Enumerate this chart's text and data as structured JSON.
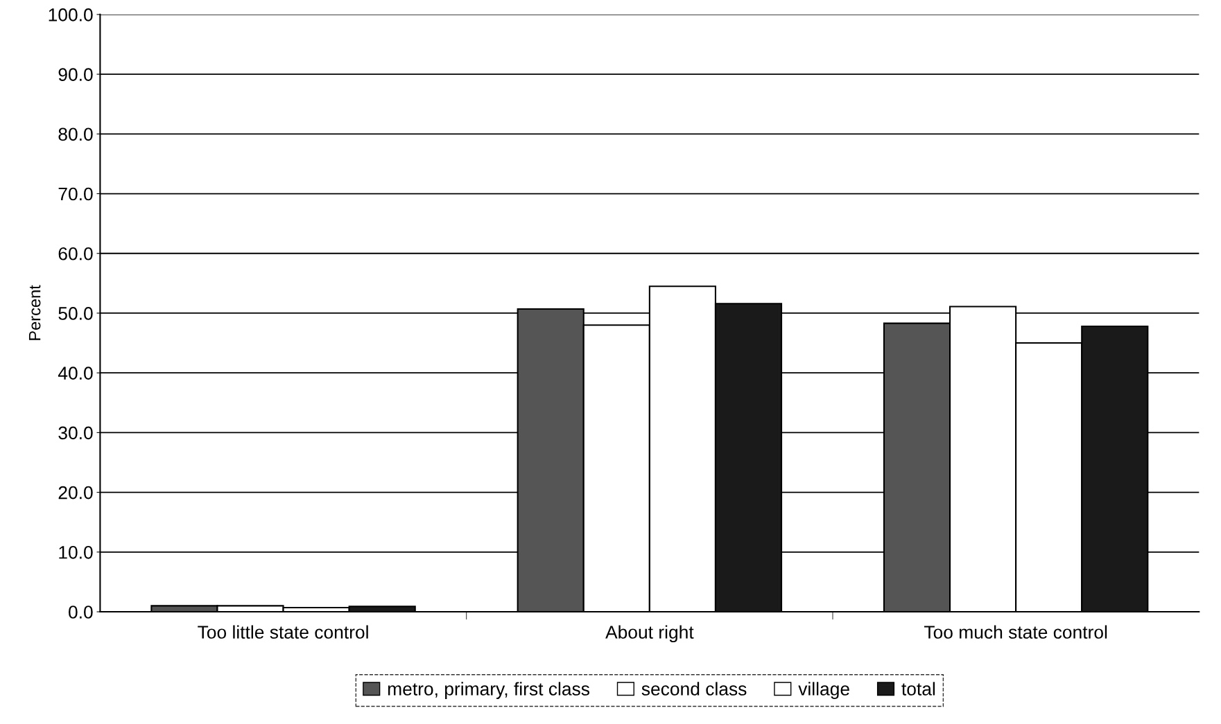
{
  "chart_data": {
    "type": "bar",
    "ylabel": "Percent",
    "categories": [
      "Too little state control",
      "About right",
      "Too much state control"
    ],
    "series": [
      {
        "name": "metro, primary, first class",
        "color": "#555555",
        "values": [
          1.0,
          50.7,
          48.3
        ]
      },
      {
        "name": "second class",
        "color": "#ffffff",
        "values": [
          1.0,
          48.0,
          51.1
        ]
      },
      {
        "name": "village",
        "color": "#ffffff",
        "values": [
          0.7,
          54.5,
          45.0
        ]
      },
      {
        "name": "total",
        "color": "#1a1a1a",
        "values": [
          0.9,
          51.6,
          47.8
        ]
      }
    ],
    "ylim": [
      0,
      100
    ],
    "yticks": [
      {
        "value": 0,
        "label": "0.0"
      },
      {
        "value": 10,
        "label": "10.0"
      },
      {
        "value": 20,
        "label": "20.0"
      },
      {
        "value": 30,
        "label": "30.0"
      },
      {
        "value": 40,
        "label": "40.0"
      },
      {
        "value": 50,
        "label": "50.0"
      },
      {
        "value": 60,
        "label": "60.0"
      },
      {
        "value": 70,
        "label": "70.0"
      },
      {
        "value": 80,
        "label": "80.0"
      },
      {
        "value": 90,
        "label": "90.0"
      },
      {
        "value": 100,
        "label": "100.0"
      }
    ],
    "grid": "y",
    "legend": "bottom"
  }
}
